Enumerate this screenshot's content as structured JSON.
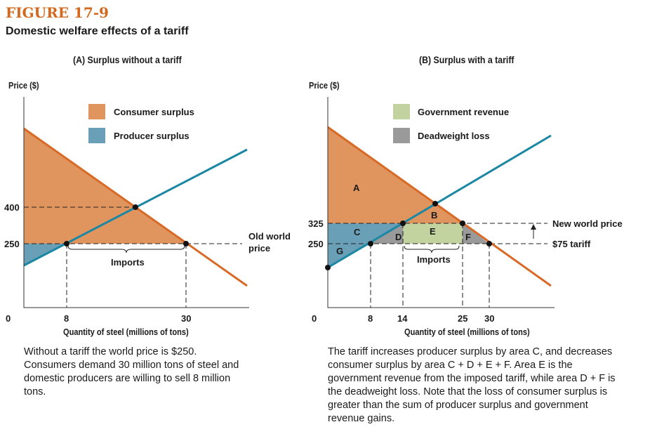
{
  "figure_label": "FIGURE 17-9",
  "subtitle": "Domestic welfare effects of a tariff",
  "colors": {
    "consumer_surplus": "#e0955f",
    "producer_surplus": "#6a9fb8",
    "government_revenue": "#c2d3a0",
    "deadweight_loss": "#9a9a9a",
    "demand": "#d86a27",
    "supply": "#1b87a3"
  },
  "panel_a": {
    "title": "(A) Surplus without a tariff",
    "ylabel": "Price ($)",
    "xlabel": "Quantity of steel (millions of tons)",
    "legend": [
      "Consumer surplus",
      "Producer surplus"
    ],
    "yticks": [
      "400",
      "250"
    ],
    "xticks": [
      "0",
      "8",
      "30"
    ],
    "price_label_1": "Old world",
    "price_label_2": "price",
    "imports_label": "Imports",
    "caption": "Without a tariff the world price is $250. Consumers demand 30 million tons of steel and  domestic producers are willing to sell 8 million tons."
  },
  "panel_b": {
    "title": "(B) Surplus with a tariff",
    "ylabel": "Price ($)",
    "xlabel": "Quantity of steel (millions of tons)",
    "legend": [
      "Government revenue",
      "Deadweight loss"
    ],
    "yticks": [
      "325",
      "250"
    ],
    "xticks": [
      "0",
      "8",
      "14",
      "25",
      "30"
    ],
    "areas": [
      "A",
      "B",
      "C",
      "D",
      "E",
      "F",
      "G"
    ],
    "new_price_label": "New world price",
    "tariff_label": "$75 tariff",
    "imports_label": "Imports",
    "caption": "The tariff increases producer surplus by area C, and decreases consumer surplus by area C + D + E + F. Area E is the government revenue from the imposed tariff, while area D + F is the deadweight loss. Note that the loss of consumer surplus is greater than the sum of producer surplus and government revenue gains."
  }
}
